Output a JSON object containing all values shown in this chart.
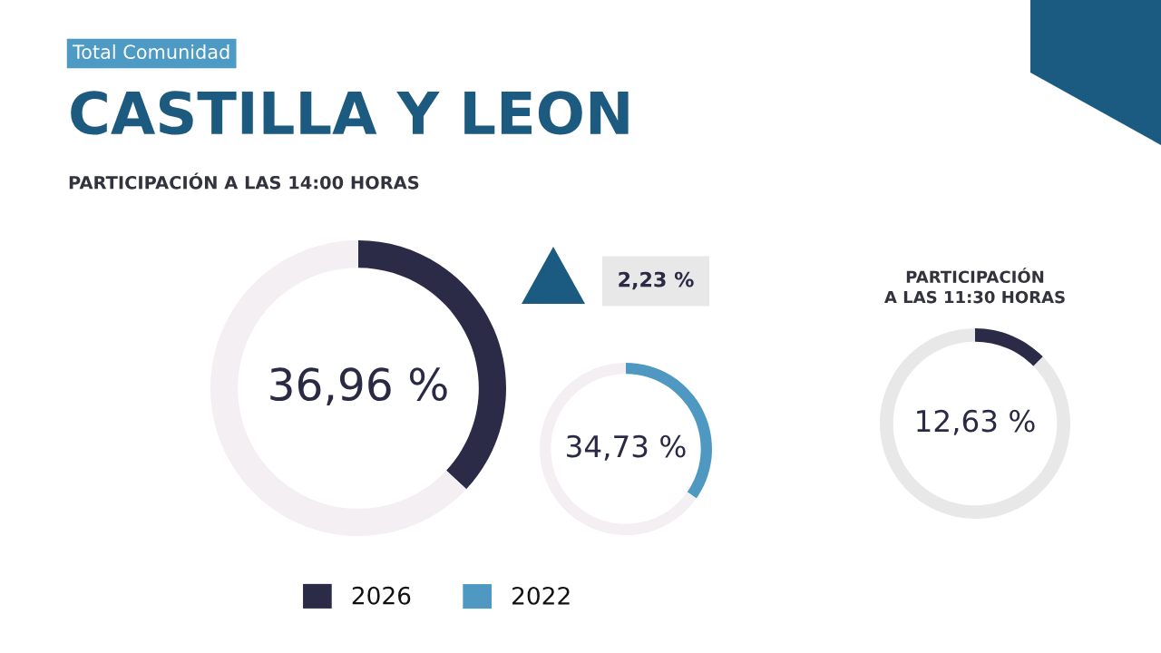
{
  "chart_data": [
    {
      "type": "donut",
      "title": "CASTILLA Y LEON",
      "subtitle": "PARTICIPACIÓN A LAS 14:00 HORAS",
      "annotations": [
        "Total Comunidad"
      ],
      "categories": [
        "2026",
        null
      ],
      "values": [
        36.96,
        63.04
      ],
      "colors": [
        "#2b2a47",
        "#f4eff2"
      ],
      "value_labels": [
        "36,96 %",
        null
      ],
      "legend": "bottom"
    },
    {
      "type": "donut",
      "annotations": [
        "2,23 %"
      ],
      "categories": [
        "2022",
        null
      ],
      "values": [
        34.73,
        65.27
      ],
      "colors": [
        "#4f98c1",
        "#f4eff2"
      ],
      "value_labels": [
        "34,73 %",
        null
      ],
      "legend": "bottom"
    },
    {
      "type": "donut",
      "title": "PARTICIPACIÓN\nA LAS 11:30 HORAS",
      "categories": [
        null,
        null
      ],
      "values": [
        12.63,
        87.37
      ],
      "colors": [
        "#2b2a47",
        "#e8e8e8"
      ],
      "value_labels": [
        "12,63 %",
        null
      ]
    }
  ]
}
